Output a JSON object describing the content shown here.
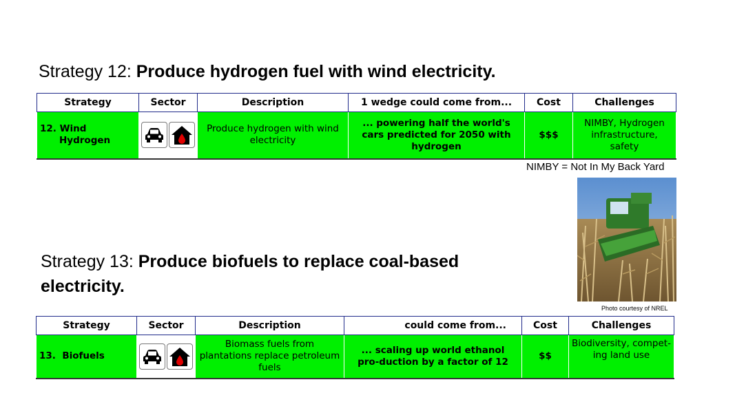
{
  "strategy12": {
    "heading_prefix": "Strategy 12: ",
    "heading_bold": "Produce hydrogen fuel with wind electricity.",
    "headers": [
      "Strategy",
      "Sector",
      "Description",
      "1 wedge could come from...",
      "Cost",
      "Challenges"
    ],
    "strategy_line1": "12. Wind",
    "strategy_line2": "Hydrogen",
    "description": "Produce hydrogen with wind electricity",
    "wedge": "... powering half the world's cars predicted for 2050 with hydrogen",
    "cost": "$$$",
    "challenges": "NIMBY, Hydrogen infrastructure, safety"
  },
  "nimby_note": "NIMBY = Not In My Back Yard",
  "photo_credit": "Photo courtesy of NREL",
  "strategy13": {
    "heading_prefix": "Strategy 13: ",
    "heading_bold_line1": "Produce biofuels to replace coal-based",
    "heading_bold_line2": "electricity.",
    "headers": [
      "Strategy",
      "Sector",
      "Description",
      "could come from...",
      "Cost",
      "Challenges"
    ],
    "strategy": "13.  Biofuels",
    "description": "Biomass fuels from plantations replace petroleum fuels",
    "wedge": "... scaling up world ethanol pro-duction by a factor of 12",
    "cost": "$$",
    "challenges": "Biodiversity, compet-ing land use"
  },
  "sector_icons": [
    "car-icon",
    "home-fuel-icon"
  ],
  "colors": {
    "cell_green": "#00f000",
    "header_border": "#1f2a8a"
  }
}
